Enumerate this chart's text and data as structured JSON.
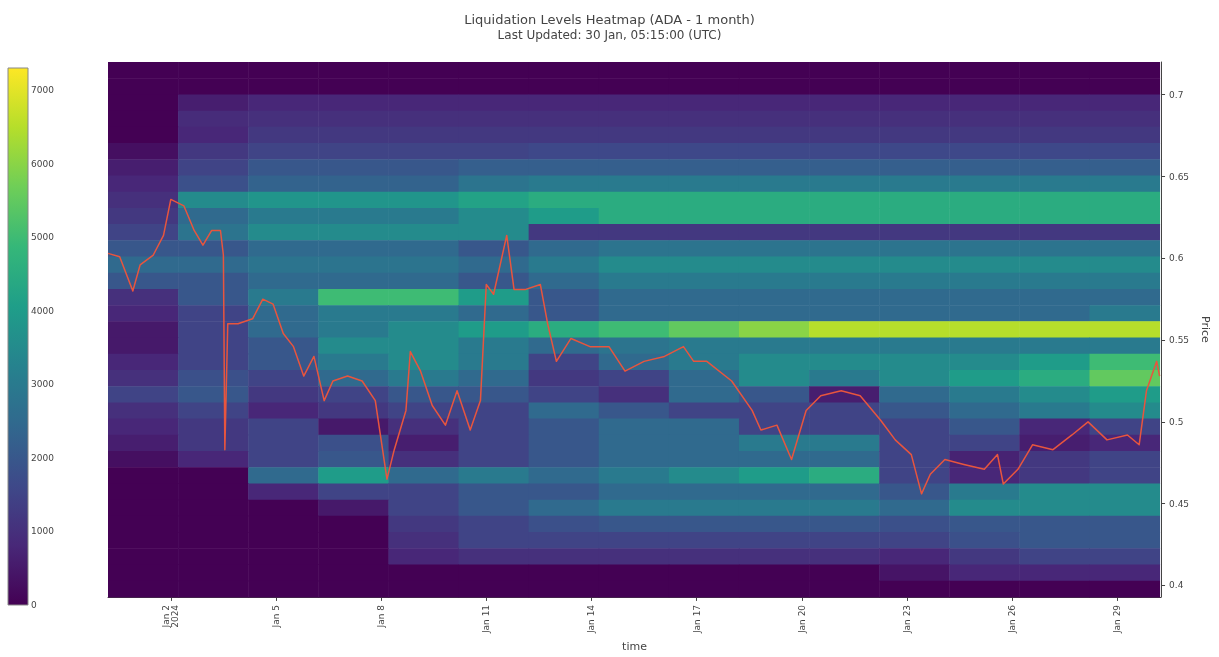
{
  "chart_data": {
    "type": "heatmap",
    "title": "Liquidation Levels Heatmap (ADA - 1 month)",
    "subtitle": "Last Updated: 30 Jan, 05:15:00 (UTC)",
    "xlabel": "time",
    "ylabel": "Price",
    "xlim": [
      "2023-12-31T05:00",
      "2024-01-30T06:00"
    ],
    "xticks": [
      {
        "value": "2024-01-02",
        "label": "Jan 2\n2024"
      },
      {
        "value": "2024-01-05",
        "label": "Jan 5"
      },
      {
        "value": "2024-01-08",
        "label": "Jan 8"
      },
      {
        "value": "2024-01-11",
        "label": "Jan 11"
      },
      {
        "value": "2024-01-14",
        "label": "Jan 14"
      },
      {
        "value": "2024-01-17",
        "label": "Jan 17"
      },
      {
        "value": "2024-01-20",
        "label": "Jan 20"
      },
      {
        "value": "2024-01-23",
        "label": "Jan 23"
      },
      {
        "value": "2024-01-26",
        "label": "Jan 26"
      },
      {
        "value": "2024-01-29",
        "label": "Jan 29"
      }
    ],
    "ylim": [
      0.393,
      0.72
    ],
    "yticks": [
      0.4,
      0.45,
      0.5,
      0.55,
      0.6,
      0.65,
      0.7
    ],
    "clim": [
      0,
      7300
    ],
    "cticks": [
      0,
      1000,
      2000,
      3000,
      4000,
      5000,
      6000,
      7000
    ],
    "x": [
      "2024-01-01T05:00",
      "2024-01-03T05:00",
      "2024-01-05T05:00",
      "2024-01-07T05:00",
      "2024-01-09T05:00",
      "2024-01-11T05:00",
      "2024-01-13T05:00",
      "2024-01-15T05:00",
      "2024-01-17T05:00",
      "2024-01-19T05:00",
      "2024-01-21T05:00",
      "2024-01-23T05:00",
      "2024-01-25T05:00",
      "2024-01-27T05:00",
      "2024-01-29T05:00"
    ],
    "cells": [
      [
        0,
        0,
        0,
        0,
        0,
        0,
        0,
        0,
        0,
        0,
        0,
        0,
        0,
        0,
        0
      ],
      [
        0,
        0,
        0,
        0,
        0,
        0,
        0,
        0,
        0,
        0,
        0,
        0,
        0,
        0,
        0
      ],
      [
        0,
        600,
        800,
        800,
        800,
        800,
        800,
        800,
        800,
        800,
        800,
        800,
        800,
        800,
        800
      ],
      [
        0,
        900,
        1000,
        1000,
        1000,
        1000,
        1000,
        1000,
        1000,
        1000,
        1000,
        1000,
        1000,
        1000,
        1000
      ],
      [
        0,
        800,
        1200,
        1200,
        1200,
        1200,
        1200,
        1200,
        1200,
        1200,
        1200,
        1200,
        1200,
        1200,
        1200
      ],
      [
        300,
        1200,
        1500,
        1500,
        1500,
        1500,
        1600,
        1600,
        1600,
        1600,
        1600,
        1600,
        1600,
        1600,
        1600
      ],
      [
        600,
        1500,
        2000,
        2000,
        2000,
        2200,
        2200,
        2200,
        2200,
        2200,
        2200,
        2200,
        2200,
        2200,
        2200
      ],
      [
        800,
        1800,
        2300,
        2300,
        2300,
        2800,
        3000,
        3000,
        3000,
        3000,
        3000,
        3000,
        3000,
        3000,
        3000
      ],
      [
        1000,
        3500,
        3800,
        3800,
        3800,
        4200,
        4500,
        4500,
        4500,
        4500,
        4500,
        4500,
        4500,
        4500,
        4500
      ],
      [
        1200,
        2500,
        3000,
        3000,
        3000,
        3500,
        4000,
        4500,
        4500,
        4500,
        4500,
        4500,
        4500,
        4500,
        4500
      ],
      [
        1500,
        2800,
        3500,
        3500,
        3500,
        3500,
        1200,
        1200,
        1200,
        1200,
        1200,
        1200,
        1200,
        1200,
        1200
      ],
      [
        2000,
        2000,
        2500,
        2500,
        2500,
        2000,
        2500,
        2800,
        2800,
        2800,
        2800,
        2800,
        2800,
        2800,
        2800
      ],
      [
        2500,
        2500,
        2800,
        2800,
        2800,
        2500,
        3000,
        3500,
        3500,
        3500,
        3500,
        3500,
        3500,
        3500,
        3500
      ],
      [
        2000,
        2000,
        2500,
        2500,
        2500,
        2000,
        2500,
        3000,
        3000,
        3000,
        3000,
        3000,
        3000,
        3000,
        3000
      ],
      [
        1000,
        2000,
        3000,
        5000,
        5000,
        4000,
        2000,
        2500,
        2500,
        2500,
        2500,
        2500,
        2500,
        2500,
        2500
      ],
      [
        800,
        1500,
        2500,
        3000,
        3000,
        2500,
        2000,
        2500,
        2500,
        2500,
        2500,
        2500,
        2500,
        2500,
        3000
      ],
      [
        500,
        1500,
        2500,
        3000,
        3500,
        4000,
        4500,
        5000,
        5500,
        6000,
        6500,
        6500,
        6500,
        6500,
        6500
      ],
      [
        500,
        1500,
        2000,
        3500,
        3500,
        3000,
        2500,
        2800,
        3000,
        3000,
        3000,
        3000,
        3000,
        3000,
        3000
      ],
      [
        800,
        1500,
        2000,
        3000,
        3500,
        3000,
        1500,
        2500,
        3000,
        3500,
        3500,
        3500,
        3500,
        4000,
        5000
      ],
      [
        1000,
        1800,
        1500,
        2500,
        3000,
        2500,
        1200,
        1500,
        2500,
        3500,
        3000,
        3500,
        4000,
        4500,
        5500
      ],
      [
        1500,
        2000,
        1200,
        1500,
        2000,
        2000,
        1500,
        1000,
        2500,
        2000,
        600,
        2500,
        3000,
        3500,
        4000
      ],
      [
        1000,
        1500,
        800,
        1200,
        1500,
        1500,
        2500,
        2000,
        1500,
        1500,
        1500,
        2000,
        2500,
        3000,
        3500
      ],
      [
        800,
        1200,
        1500,
        500,
        1000,
        1500,
        2000,
        2500,
        2500,
        1500,
        1500,
        1500,
        2000,
        800,
        1500
      ],
      [
        600,
        1200,
        1500,
        1800,
        600,
        1500,
        2000,
        2500,
        2500,
        3000,
        3000,
        1500,
        1500,
        600,
        800
      ],
      [
        300,
        800,
        1500,
        2000,
        1000,
        1500,
        2000,
        2500,
        2500,
        2500,
        2500,
        1500,
        700,
        1200,
        1500
      ],
      [
        0,
        0,
        2500,
        4000,
        2500,
        3000,
        2500,
        3000,
        3500,
        4000,
        4500,
        1500,
        800,
        1200,
        1500
      ],
      [
        0,
        0,
        800,
        1500,
        1500,
        2000,
        2000,
        2500,
        2500,
        2500,
        2500,
        2000,
        3000,
        3500,
        3500
      ],
      [
        0,
        0,
        0,
        500,
        1500,
        2000,
        2500,
        3000,
        3000,
        3000,
        3000,
        2500,
        3500,
        3500,
        3500
      ],
      [
        0,
        0,
        0,
        0,
        1200,
        1500,
        1800,
        2000,
        2000,
        2000,
        2000,
        1800,
        2000,
        2000,
        2000
      ],
      [
        0,
        0,
        0,
        0,
        1000,
        1500,
        1500,
        1500,
        1500,
        1500,
        1500,
        1500,
        1800,
        2000,
        2000
      ],
      [
        0,
        0,
        0,
        0,
        800,
        1000,
        1000,
        1000,
        1000,
        1000,
        1000,
        800,
        1200,
        1500,
        1500
      ],
      [
        0,
        0,
        0,
        0,
        0,
        0,
        0,
        0,
        0,
        0,
        0,
        400,
        800,
        800,
        800
      ],
      [
        0,
        0,
        0,
        0,
        0,
        0,
        0,
        0,
        0,
        0,
        0,
        0,
        0,
        0,
        0
      ]
    ],
    "series": [
      {
        "type": "line",
        "color": "#e8553e",
        "x": [
          "2023-12-31T05:00",
          "2023-12-31T13:00",
          "2023-12-31T22:00",
          "2024-01-01T03:00",
          "2024-01-01T12:00",
          "2024-01-01T19:00",
          "2024-01-02T00:00",
          "2024-01-02T09:00",
          "2024-01-02T16:00",
          "2024-01-02T22:00",
          "2024-01-03T04:00",
          "2024-01-03T10:00",
          "2024-01-03T12:00",
          "2024-01-03T13:00",
          "2024-01-03T15:00",
          "2024-01-03T22:00",
          "2024-01-04T08:00",
          "2024-01-04T15:00",
          "2024-01-04T22:00",
          "2024-01-05T05:00",
          "2024-01-05T12:00",
          "2024-01-05T19:00",
          "2024-01-06T02:00",
          "2024-01-06T09:00",
          "2024-01-06T15:00",
          "2024-01-07T01:00",
          "2024-01-07T11:00",
          "2024-01-07T20:00",
          "2024-01-08T04:00",
          "2024-01-08T09:00",
          "2024-01-08T17:00",
          "2024-01-08T20:00",
          "2024-01-09T03:00",
          "2024-01-09T11:00",
          "2024-01-09T20:00",
          "2024-01-10T04:00",
          "2024-01-10T13:00",
          "2024-01-10T20:00",
          "2024-01-11T00:00",
          "2024-01-11T05:00",
          "2024-01-11T14:00",
          "2024-01-11T19:00",
          "2024-01-12T03:00",
          "2024-01-12T13:00",
          "2024-01-12T18:00",
          "2024-01-13T00:00",
          "2024-01-13T10:00",
          "2024-01-13T23:00",
          "2024-01-14T12:00",
          "2024-01-14T23:00",
          "2024-01-15T12:00",
          "2024-01-16T02:00",
          "2024-01-16T15:00",
          "2024-01-16T22:00",
          "2024-01-17T07:00",
          "2024-01-18T00:00",
          "2024-01-18T14:00",
          "2024-01-18T20:00",
          "2024-01-19T07:00",
          "2024-01-19T17:00",
          "2024-01-20T03:00",
          "2024-01-20T13:00",
          "2024-01-21T03:00",
          "2024-01-21T16:00",
          "2024-01-22T06:00",
          "2024-01-22T16:00",
          "2024-01-23T03:00",
          "2024-01-23T10:00",
          "2024-01-23T16:00",
          "2024-01-24T02:00",
          "2024-01-24T15:00",
          "2024-01-25T05:00",
          "2024-01-25T14:00",
          "2024-01-25T18:00",
          "2024-01-26T04:00",
          "2024-01-26T14:00",
          "2024-01-27T04:00",
          "2024-01-27T17:00",
          "2024-01-28T04:00",
          "2024-01-28T17:00",
          "2024-01-29T07:00",
          "2024-01-29T15:00",
          "2024-01-29T20:00",
          "2024-01-30T03:00",
          "2024-01-30T05:00"
        ],
        "values": [
          0.603,
          0.601,
          0.58,
          0.596,
          0.602,
          0.614,
          0.636,
          0.632,
          0.617,
          0.608,
          0.617,
          0.617,
          0.602,
          0.483,
          0.56,
          0.56,
          0.563,
          0.575,
          0.572,
          0.554,
          0.546,
          0.528,
          0.54,
          0.513,
          0.525,
          0.528,
          0.525,
          0.513,
          0.465,
          0.483,
          0.507,
          0.543,
          0.531,
          0.51,
          0.498,
          0.519,
          0.495,
          0.513,
          0.584,
          0.578,
          0.614,
          0.581,
          0.581,
          0.584,
          0.56,
          0.537,
          0.551,
          0.546,
          0.546,
          0.531,
          0.537,
          0.54,
          0.546,
          0.537,
          0.537,
          0.525,
          0.507,
          0.495,
          0.498,
          0.477,
          0.507,
          0.516,
          0.519,
          0.516,
          0.501,
          0.489,
          0.48,
          0.456,
          0.468,
          0.477,
          0.474,
          0.471,
          0.48,
          0.462,
          0.471,
          0.486,
          0.483,
          0.492,
          0.5,
          0.489,
          0.492,
          0.486,
          0.519,
          0.537,
          0.528
        ]
      }
    ]
  }
}
